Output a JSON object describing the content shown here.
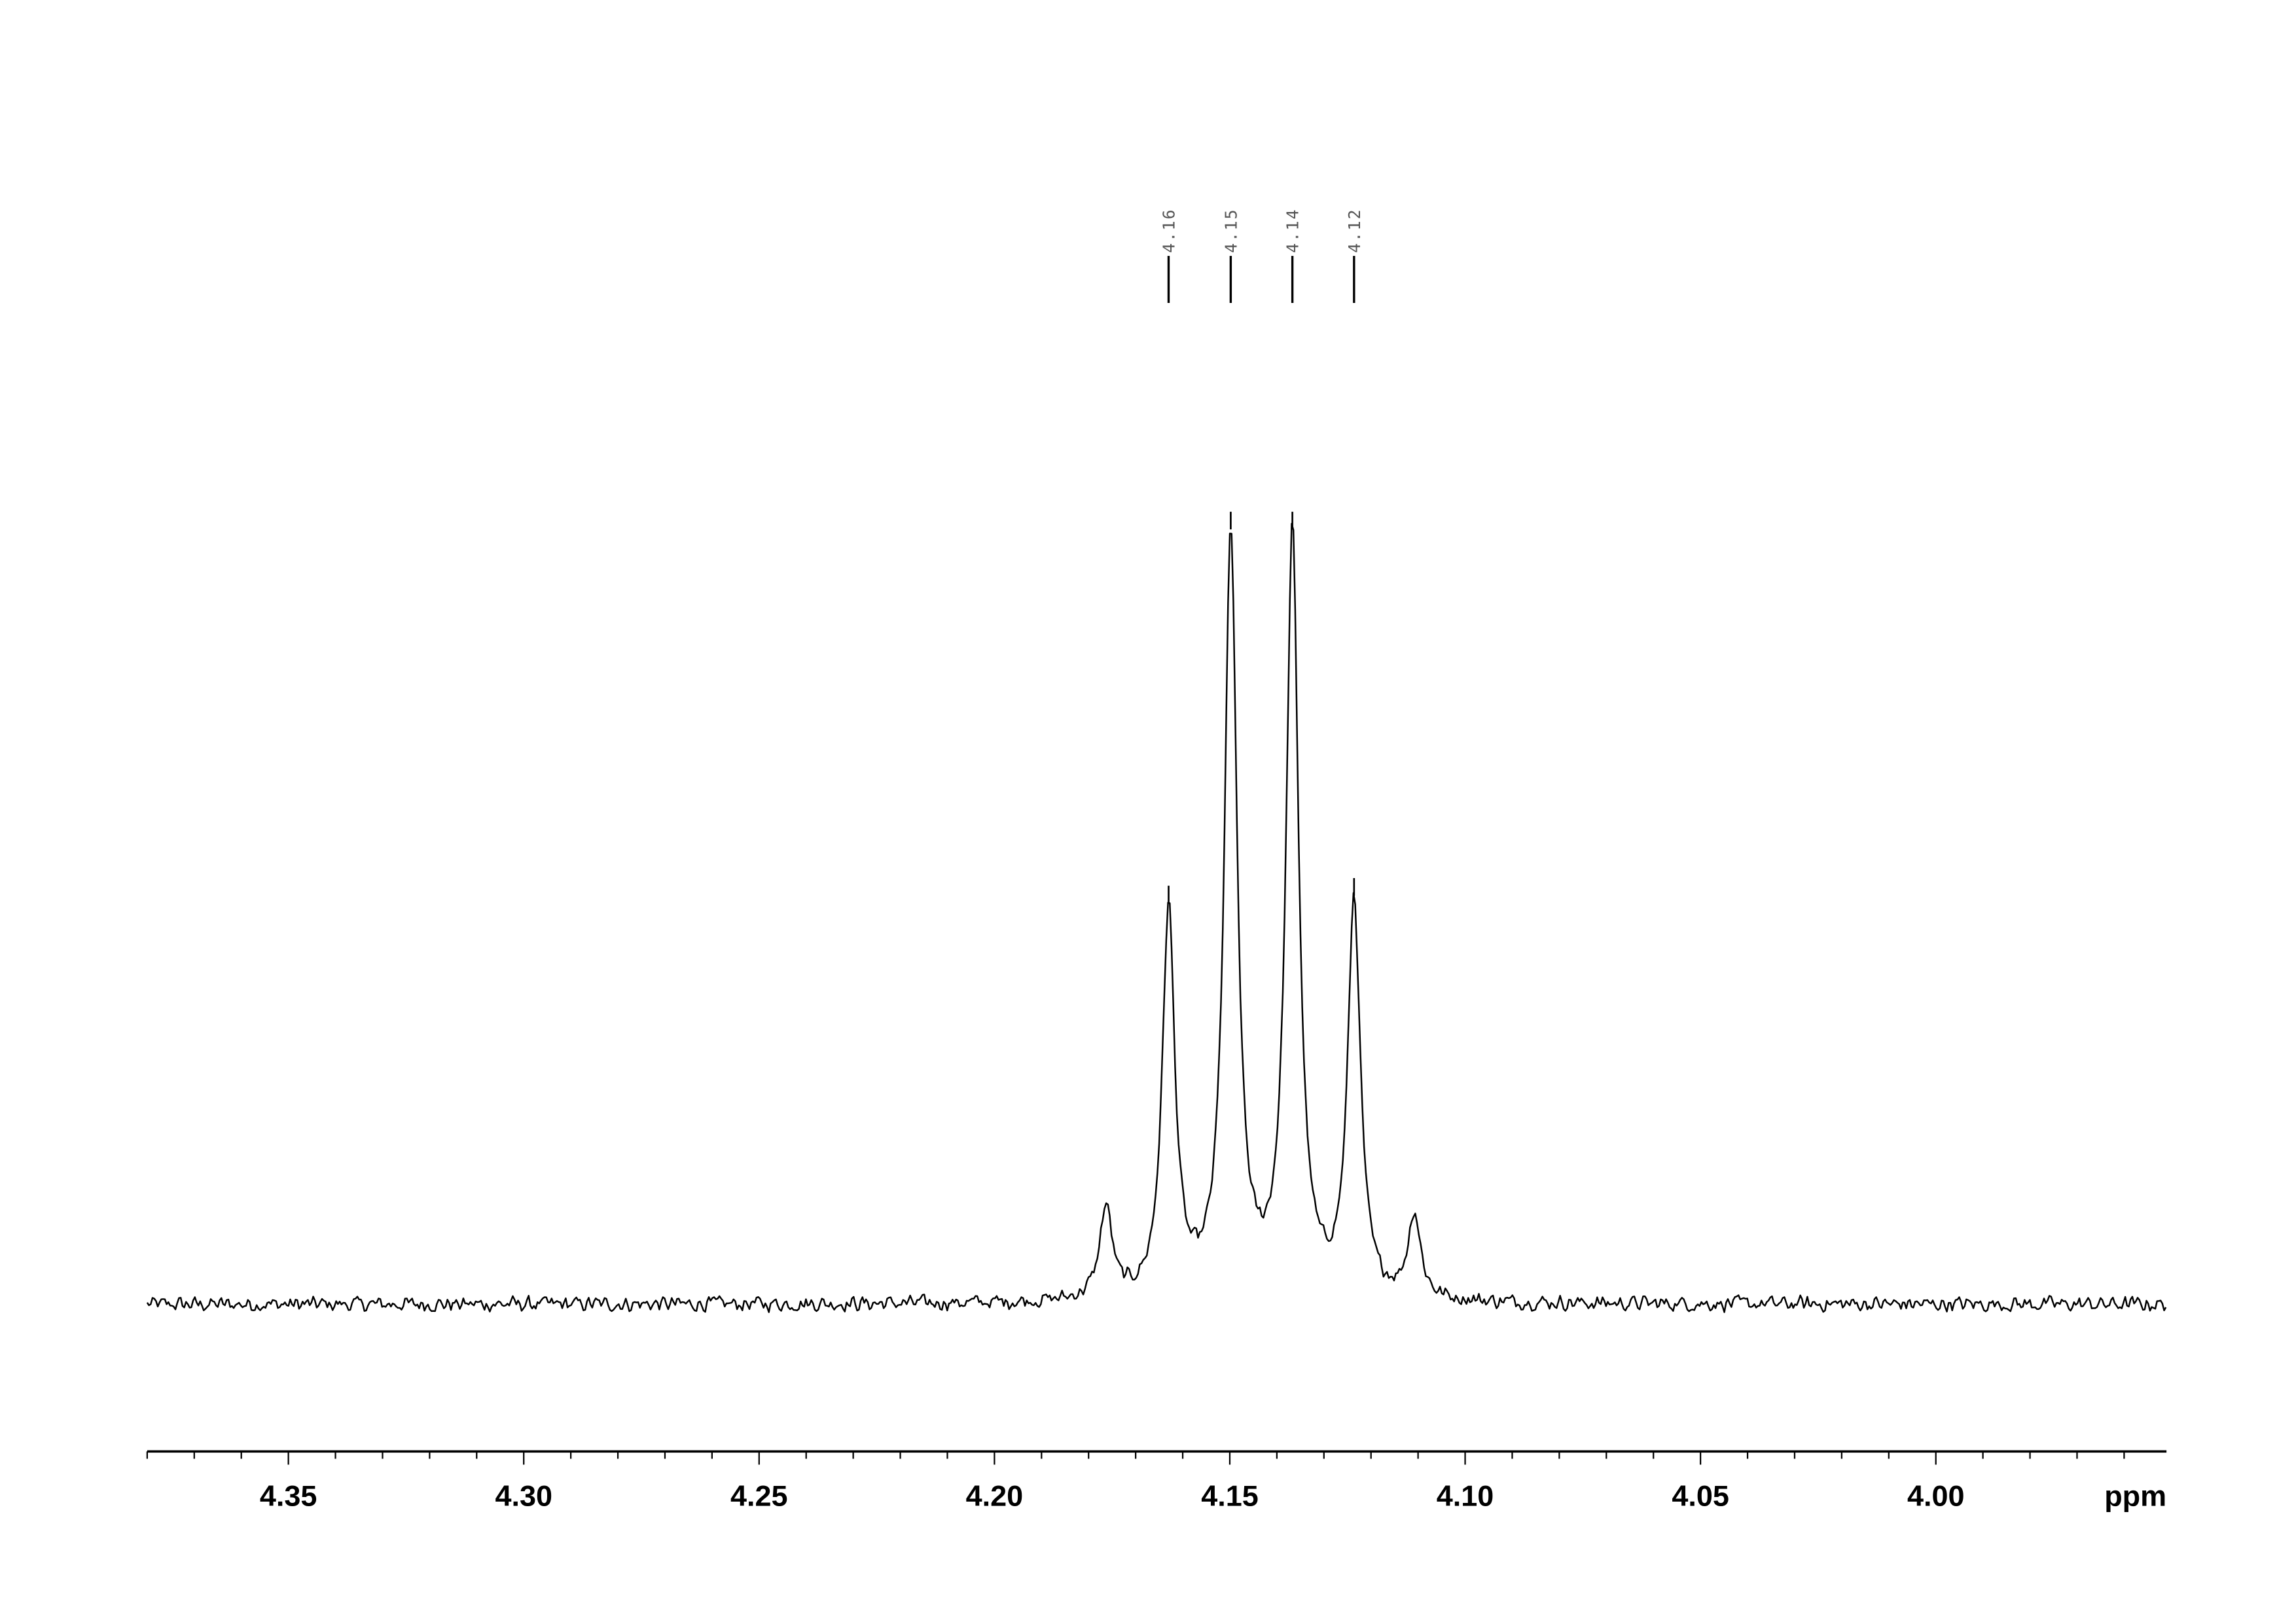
{
  "chart_data": {
    "type": "line",
    "title": "",
    "xlabel": "ppm",
    "ylabel": "",
    "xlim": [
      4.38,
      3.951
    ],
    "x_reversed": true,
    "grid": false,
    "legend": "none",
    "major_ticks": [
      4.35,
      4.3,
      4.25,
      4.2,
      4.15,
      4.1,
      4.05,
      4.0
    ],
    "tick_labels": [
      "4.35",
      "4.30",
      "4.25",
      "4.20",
      "4.15",
      "4.10",
      "4.05",
      "4.00"
    ],
    "minor_tick_step": 0.01,
    "peak_labels": [
      "4.16",
      "4.15",
      "4.14",
      "4.12"
    ],
    "peaks": [
      {
        "ppm": 4.1763,
        "relative_intensity": 0.12,
        "labeled": false
      },
      {
        "ppm": 4.163,
        "relative_intensity": 0.51,
        "labeled": true
      },
      {
        "ppm": 4.1498,
        "relative_intensity": 1.0,
        "labeled": true
      },
      {
        "ppm": 4.1367,
        "relative_intensity": 1.0,
        "labeled": true
      },
      {
        "ppm": 4.1236,
        "relative_intensity": 0.52,
        "labeled": true
      },
      {
        "ppm": 4.1108,
        "relative_intensity": 0.11,
        "labeled": false
      }
    ],
    "noise_level": 0.012,
    "line_color": "#000000"
  }
}
